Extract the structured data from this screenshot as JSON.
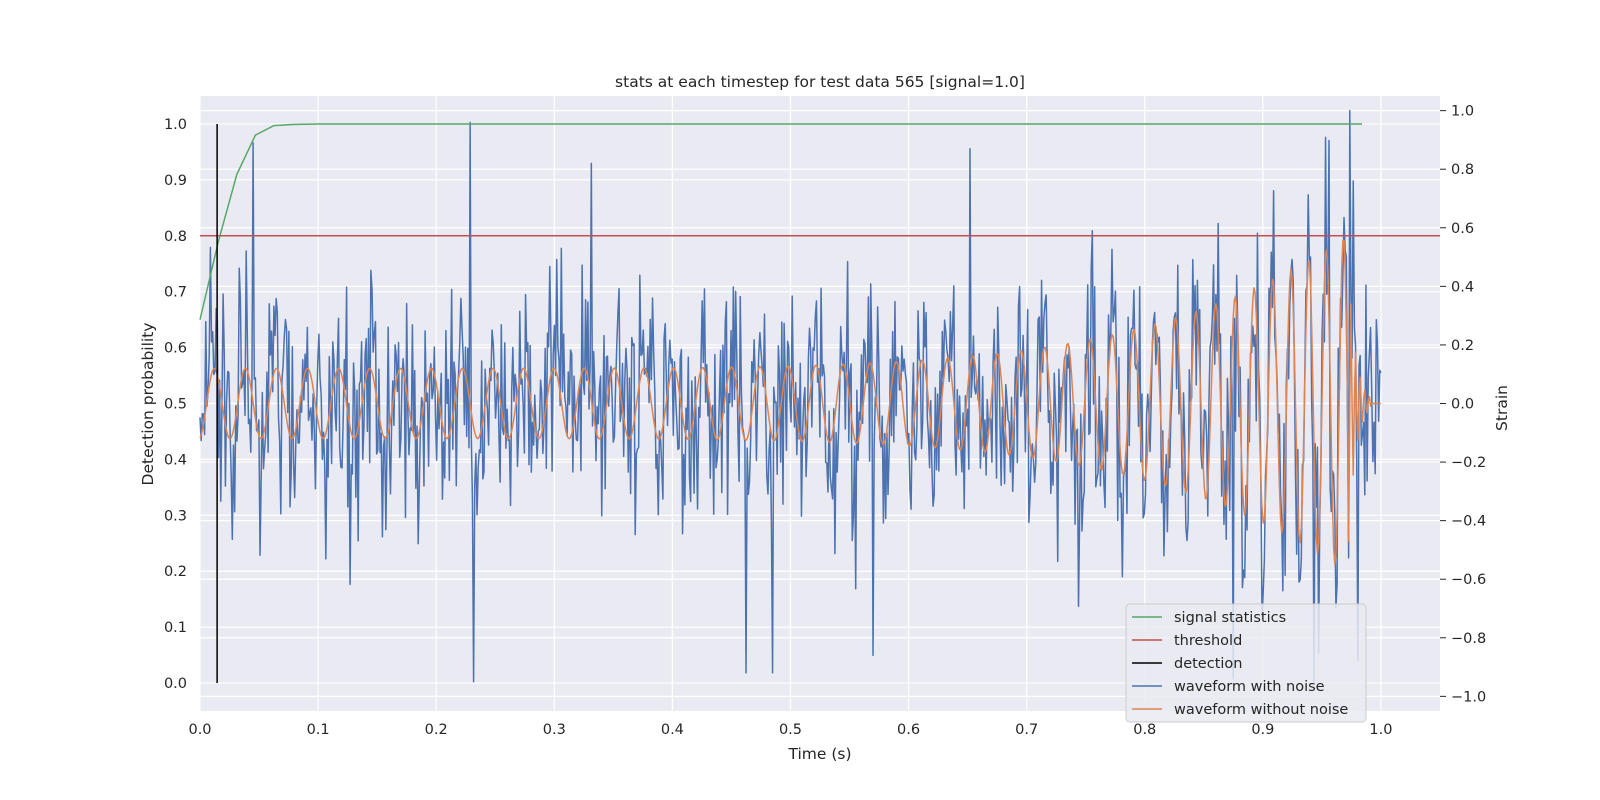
{
  "chart_data": {
    "type": "line",
    "title": "stats at each timestep for test data 565 [signal=1.0]",
    "xlabel": "Time (s)",
    "ylabel": "Detection probability",
    "y2label": "Strain",
    "xlim": [
      0.0,
      1.05
    ],
    "ylim": [
      -0.05,
      1.05
    ],
    "y2lim": [
      -1.05,
      1.05
    ],
    "xticks": [
      "0.0",
      "0.1",
      "0.2",
      "0.3",
      "0.4",
      "0.5",
      "0.6",
      "0.7",
      "0.8",
      "0.9",
      "1.0"
    ],
    "yticks": [
      "0.0",
      "0.1",
      "0.2",
      "0.3",
      "0.4",
      "0.5",
      "0.6",
      "0.7",
      "0.8",
      "0.9",
      "1.0"
    ],
    "y2ticks": [
      "−1.0",
      "−0.8",
      "−0.6",
      "−0.4",
      "−0.2",
      "0.0",
      "0.2",
      "0.4",
      "0.6",
      "0.8",
      "1.0"
    ],
    "grid": true,
    "legend_position": "bottom-right",
    "series": [
      {
        "name": "signal statistics",
        "color": "#55a868",
        "axis": "left",
        "x": [
          0.0,
          0.0156,
          0.0312,
          0.0469,
          0.0625,
          0.0781,
          0.1,
          0.2,
          0.3,
          0.4,
          0.5,
          0.6,
          0.7,
          0.8,
          0.9,
          0.984
        ],
        "y": [
          0.65,
          0.79,
          0.91,
          0.98,
          0.997,
          0.999,
          1.0,
          1.0,
          1.0,
          1.0,
          1.0,
          1.0,
          1.0,
          1.0,
          1.0,
          1.0
        ]
      },
      {
        "name": "threshold",
        "color": "#c44e52",
        "axis": "left",
        "x": [
          0.0,
          1.05
        ],
        "y": [
          0.8,
          0.8
        ]
      },
      {
        "name": "detection",
        "color": "#000000",
        "axis": "left",
        "x": [
          0.0145,
          0.0145
        ],
        "y": [
          0.0,
          1.0
        ]
      },
      {
        "name": "waveform with noise",
        "color": "#4c72b0",
        "axis": "right",
        "x_range": [
          0.0,
          1.0
        ],
        "samples": 1024,
        "noise_std": 0.27,
        "seed": 565,
        "peaks": [
          [
            0.045,
            0.89
          ],
          [
            0.229,
            0.96
          ],
          [
            0.232,
            -0.95
          ],
          [
            0.331,
            0.82
          ],
          [
            0.462,
            -0.92
          ],
          [
            0.485,
            -0.92
          ],
          [
            0.57,
            -0.86
          ],
          [
            0.652,
            0.87
          ],
          [
            0.875,
            -0.94
          ],
          [
            0.943,
            -0.95
          ],
          [
            0.974,
            1.0
          ],
          [
            0.977,
            0.76
          ],
          [
            0.98,
            -0.88
          ]
        ]
      },
      {
        "name": "waveform without noise",
        "color": "#dd8452",
        "axis": "right",
        "x_range": [
          0.0,
          1.0
        ],
        "samples": 1024,
        "amplitude_start": 0.12,
        "amplitude_end": 0.58,
        "freq_start_hz": 38,
        "freq_end_hz": 70,
        "merger_time": 0.972,
        "ringdown_end": 0.992
      }
    ]
  }
}
